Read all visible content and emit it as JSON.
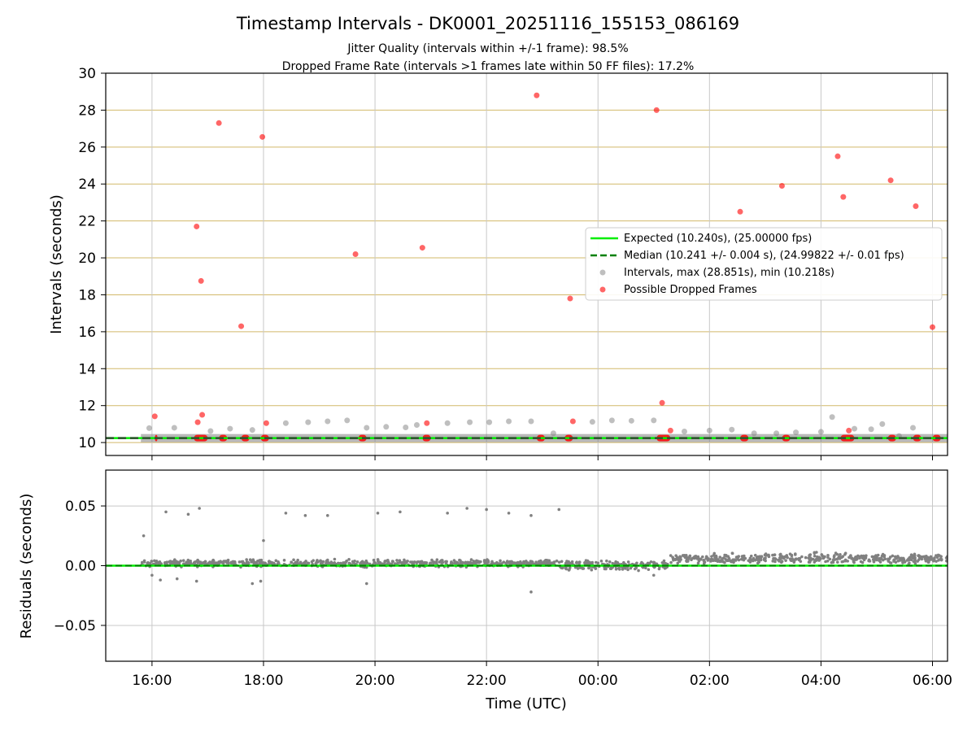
{
  "title": "Timestamp Intervals - DK0001_20251116_155153_086169",
  "subtitle_lines": [
    "Jitter Quality (intervals within +/-1 frame): 98.5%",
    "Dropped Frame Rate (intervals >1 frames late within 50 FF files): 17.2%"
  ],
  "colors": {
    "expected": "#00ee00",
    "median": "#008000",
    "intervals": "#808080",
    "dropped": "#ff0000",
    "hgrid_top": "#d2b96a",
    "grid": "#c8c8c8"
  },
  "chart_data": [
    {
      "type": "scatter",
      "panel": "intervals",
      "ylabel": "Intervals (seconds)",
      "xlabel": "",
      "x_unit": "hours after 16:00 UTC on 2025-11-16",
      "xlim": [
        -0.83,
        14.27
      ],
      "ylim": [
        9.3,
        30
      ],
      "yticks": [
        10,
        12,
        14,
        16,
        18,
        20,
        22,
        24,
        26,
        28,
        30
      ],
      "grid": "on (tan horizontal, gray vertical)",
      "legend": {
        "placement": "center-right",
        "entries": [
          "Expected (10.240s), (25.00000 fps)",
          "Median (10.241 +/- 0.004 s), (24.99822 +/- 0.01 fps)",
          "Intervals, max (28.851s), min (10.218s)",
          "Possible Dropped Frames"
        ]
      },
      "expected_value": 10.24,
      "median_value": 10.241,
      "baseline": {
        "x_start": -0.2,
        "x_end": 14.27,
        "value": 10.24
      },
      "intervals": [
        [
          -0.05,
          10.78
        ],
        [
          0.4,
          10.8
        ],
        [
          1.05,
          10.62
        ],
        [
          1.4,
          10.75
        ],
        [
          1.8,
          10.68
        ],
        [
          2.4,
          11.05
        ],
        [
          2.8,
          11.1
        ],
        [
          3.15,
          11.15
        ],
        [
          3.5,
          11.2
        ],
        [
          3.85,
          10.8
        ],
        [
          4.2,
          10.85
        ],
        [
          4.55,
          10.82
        ],
        [
          4.75,
          10.95
        ],
        [
          5.3,
          11.05
        ],
        [
          5.7,
          11.1
        ],
        [
          6.05,
          11.1
        ],
        [
          6.4,
          11.15
        ],
        [
          6.8,
          11.15
        ],
        [
          7.2,
          10.5
        ],
        [
          7.9,
          11.12
        ],
        [
          8.25,
          11.2
        ],
        [
          8.6,
          11.18
        ],
        [
          9.0,
          11.2
        ],
        [
          9.55,
          10.6
        ],
        [
          10.0,
          10.65
        ],
        [
          10.4,
          10.7
        ],
        [
          10.8,
          10.5
        ],
        [
          11.2,
          10.5
        ],
        [
          11.55,
          10.55
        ],
        [
          12.0,
          10.58
        ],
        [
          12.2,
          11.38
        ],
        [
          12.6,
          10.75
        ],
        [
          12.9,
          10.72
        ],
        [
          13.1,
          11.0
        ],
        [
          13.4,
          10.35
        ],
        [
          13.65,
          10.8
        ]
      ],
      "dropped": [
        [
          0.05,
          11.42
        ],
        [
          0.8,
          21.7
        ],
        [
          0.88,
          18.75
        ],
        [
          0.82,
          11.1
        ],
        [
          0.9,
          11.5
        ],
        [
          1.2,
          27.3
        ],
        [
          1.6,
          16.3
        ],
        [
          1.98,
          26.55
        ],
        [
          2.05,
          11.05
        ],
        [
          3.65,
          20.2
        ],
        [
          4.85,
          20.55
        ],
        [
          4.93,
          11.05
        ],
        [
          6.9,
          28.8
        ],
        [
          7.5,
          17.8
        ],
        [
          7.55,
          11.15
        ],
        [
          9.05,
          28.0
        ],
        [
          9.15,
          12.15
        ],
        [
          9.3,
          10.65
        ],
        [
          10.55,
          22.5
        ],
        [
          11.3,
          23.9
        ],
        [
          12.3,
          25.5
        ],
        [
          12.4,
          23.3
        ],
        [
          12.5,
          10.65
        ],
        [
          13.25,
          24.2
        ],
        [
          13.7,
          22.8
        ],
        [
          14.0,
          16.25
        ]
      ],
      "dropped_clusters": [
        [
          0.05,
          0.1
        ],
        [
          0.75,
          1.0
        ],
        [
          1.2,
          1.35
        ],
        [
          1.6,
          1.75
        ],
        [
          1.95,
          2.1
        ],
        [
          3.7,
          3.85
        ],
        [
          4.85,
          5.0
        ],
        [
          6.9,
          7.05
        ],
        [
          7.4,
          7.55
        ],
        [
          9.05,
          9.3
        ],
        [
          10.55,
          10.7
        ],
        [
          11.3,
          11.45
        ],
        [
          12.35,
          12.6
        ],
        [
          13.2,
          13.35
        ],
        [
          13.65,
          13.8
        ],
        [
          14.0,
          14.15
        ]
      ]
    },
    {
      "type": "scatter",
      "panel": "residuals",
      "ylabel": "Residuals (seconds)",
      "xlabel": "Time (UTC)",
      "x_unit": "hours after 16:00 UTC on 2025-11-16",
      "xlim": [
        -0.83,
        14.27
      ],
      "ylim": [
        -0.08,
        0.08
      ],
      "yticks": [
        0.05,
        0.0,
        -0.05
      ],
      "ytick_labels": [
        "0.05",
        "0.00",
        "−0.05"
      ],
      "xticks": [
        0,
        2,
        4,
        6,
        8,
        10,
        12,
        14
      ],
      "xtick_labels": [
        "16:00",
        "18:00",
        "20:00",
        "22:00",
        "00:00",
        "02:00",
        "04:00",
        "06:00"
      ],
      "grid": "on",
      "baseline_value": 0.0,
      "outliers": [
        [
          -0.15,
          0.025
        ],
        [
          0.25,
          0.045
        ],
        [
          0.65,
          0.043
        ],
        [
          0.85,
          0.048
        ],
        [
          2.0,
          0.021
        ],
        [
          2.4,
          0.044
        ],
        [
          2.75,
          0.042
        ],
        [
          3.15,
          0.042
        ],
        [
          4.05,
          0.044
        ],
        [
          4.45,
          0.045
        ],
        [
          5.3,
          0.044
        ],
        [
          5.65,
          0.048
        ],
        [
          6.0,
          0.047
        ],
        [
          6.4,
          0.044
        ],
        [
          6.8,
          0.042
        ],
        [
          7.3,
          0.047
        ],
        [
          0.0,
          -0.008
        ],
        [
          0.15,
          -0.012
        ],
        [
          0.45,
          -0.011
        ],
        [
          0.8,
          -0.013
        ],
        [
          1.8,
          -0.015
        ],
        [
          1.95,
          -0.013
        ],
        [
          3.85,
          -0.015
        ],
        [
          6.8,
          -0.022
        ],
        [
          9.0,
          -0.008
        ]
      ],
      "segments": [
        {
          "x_start": -0.2,
          "x_end": 7.3,
          "center": 0.002,
          "spread": 0.004
        },
        {
          "x_start": 7.3,
          "x_end": 9.3,
          "center": 0.0,
          "spread": 0.006
        },
        {
          "x_start": 9.3,
          "x_end": 14.27,
          "center": 0.006,
          "spread": 0.006
        }
      ]
    }
  ]
}
